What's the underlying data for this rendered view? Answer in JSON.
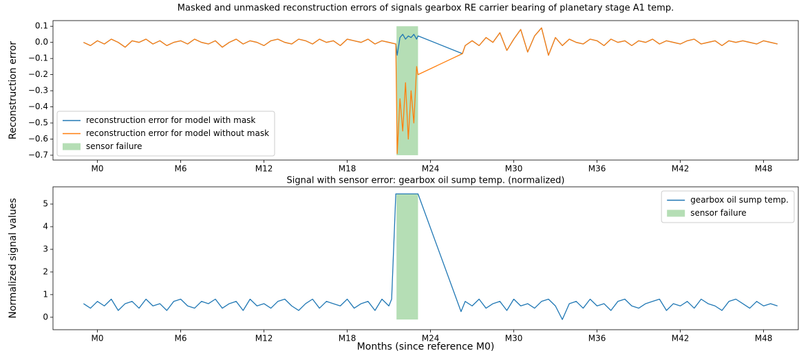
{
  "chart_data": [
    {
      "type": "line",
      "title": "Masked and unmasked reconstruction errors of signals gearbox RE carrier bearing of planetary stage A1 temp.",
      "ylabel": "Reconstruction error",
      "x": [
        -1,
        -0.5,
        0,
        0.5,
        1,
        1.5,
        2,
        2.5,
        3,
        3.5,
        4,
        4.5,
        5,
        5.5,
        6,
        6.5,
        7,
        7.5,
        8,
        8.5,
        9,
        9.5,
        10,
        10.5,
        11,
        11.5,
        12,
        12.5,
        13,
        13.5,
        14,
        14.5,
        15,
        15.5,
        16,
        16.5,
        17,
        17.5,
        18,
        18.5,
        19,
        19.5,
        20,
        20.5,
        21,
        21.5,
        21.6,
        21.8,
        22.0,
        22.2,
        22.4,
        22.6,
        22.8,
        23.0,
        23.1,
        26.3,
        26.5,
        27,
        27.5,
        28,
        28.5,
        29,
        29.5,
        30,
        30.5,
        31,
        31.5,
        32,
        32.5,
        33,
        33.5,
        34,
        34.5,
        35,
        35.5,
        36,
        36.5,
        37,
        37.5,
        38,
        38.5,
        39,
        39.5,
        40,
        40.5,
        41,
        41.5,
        42,
        42.5,
        43,
        43.5,
        44,
        44.5,
        45,
        45.5,
        46,
        46.5,
        47,
        47.5,
        48,
        48.5,
        49
      ],
      "series": [
        {
          "name": "reconstruction error for model with mask",
          "color": "#1f77b4",
          "values": [
            0.0,
            -0.02,
            0.01,
            -0.01,
            0.02,
            0.0,
            -0.03,
            0.01,
            0.0,
            0.02,
            -0.01,
            0.01,
            -0.02,
            0.0,
            0.01,
            -0.01,
            0.02,
            0.0,
            -0.01,
            0.01,
            -0.03,
            0.0,
            0.02,
            -0.01,
            0.01,
            0.0,
            -0.02,
            0.01,
            0.02,
            0.0,
            -0.01,
            0.02,
            0.01,
            -0.01,
            0.02,
            0.0,
            0.01,
            -0.02,
            0.02,
            0.01,
            0.0,
            0.02,
            -0.01,
            0.01,
            0.0,
            -0.01,
            -0.08,
            0.03,
            0.05,
            0.02,
            0.04,
            0.03,
            0.05,
            0.02,
            0.04,
            -0.07,
            -0.02,
            0.01,
            -0.02,
            0.03,
            0.0,
            0.06,
            -0.05,
            0.02,
            0.08,
            -0.06,
            0.04,
            0.09,
            -0.08,
            0.03,
            -0.02,
            0.02,
            0.0,
            -0.01,
            0.02,
            0.01,
            -0.02,
            0.02,
            0.0,
            0.01,
            -0.02,
            0.01,
            0.0,
            0.02,
            -0.01,
            0.01,
            0.0,
            -0.01,
            0.01,
            0.02,
            -0.01,
            0.0,
            0.01,
            -0.02,
            0.01,
            0.0,
            0.01,
            0.0,
            -0.01,
            0.01,
            0.0,
            -0.01
          ]
        },
        {
          "name": "reconstruction error for model without mask",
          "color": "#ff7f0e",
          "values": [
            0.0,
            -0.02,
            0.01,
            -0.01,
            0.02,
            0.0,
            -0.03,
            0.01,
            0.0,
            0.02,
            -0.01,
            0.01,
            -0.02,
            0.0,
            0.01,
            -0.01,
            0.02,
            0.0,
            -0.01,
            0.01,
            -0.03,
            0.0,
            0.02,
            -0.01,
            0.01,
            0.0,
            -0.02,
            0.01,
            0.02,
            0.0,
            -0.01,
            0.02,
            0.01,
            -0.01,
            0.02,
            0.0,
            0.01,
            -0.02,
            0.02,
            0.01,
            0.0,
            0.02,
            -0.01,
            0.01,
            0.0,
            -0.01,
            -0.69,
            -0.35,
            -0.55,
            -0.25,
            -0.6,
            -0.3,
            -0.5,
            -0.15,
            -0.2,
            -0.07,
            -0.02,
            0.01,
            -0.02,
            0.03,
            0.0,
            0.06,
            -0.05,
            0.02,
            0.08,
            -0.06,
            0.04,
            0.09,
            -0.08,
            0.03,
            -0.02,
            0.02,
            0.0,
            -0.01,
            0.02,
            0.01,
            -0.02,
            0.02,
            0.0,
            0.01,
            -0.02,
            0.01,
            0.0,
            0.02,
            -0.01,
            0.01,
            0.0,
            -0.01,
            0.01,
            0.02,
            -0.01,
            0.0,
            0.01,
            -0.02,
            0.01,
            0.0,
            0.01,
            0.0,
            -0.01,
            0.01,
            0.0,
            -0.01
          ]
        }
      ],
      "regions": [
        {
          "name": "sensor failure",
          "color": "#2ca02c",
          "alpha": 0.35,
          "x0": 21.55,
          "x1": 23.1,
          "y0": -0.7,
          "y1": 0.1
        }
      ],
      "xlim": [
        -3.2,
        50.5
      ],
      "xticks": [
        {
          "value": 0,
          "label": "M0"
        },
        {
          "value": 6,
          "label": "M6"
        },
        {
          "value": 12,
          "label": "M12"
        },
        {
          "value": 18,
          "label": "M18"
        },
        {
          "value": 24,
          "label": "M24"
        },
        {
          "value": 30,
          "label": "M30"
        },
        {
          "value": 36,
          "label": "M36"
        },
        {
          "value": 42,
          "label": "M42"
        },
        {
          "value": 48,
          "label": "M48"
        }
      ],
      "ylim": [
        -0.73,
        0.135
      ],
      "yticks": [
        {
          "value": 0.1,
          "label": "0.1"
        },
        {
          "value": 0,
          "label": "0.0"
        },
        {
          "value": -0.1,
          "label": "−0.1"
        },
        {
          "value": -0.2,
          "label": "−0.2"
        },
        {
          "value": -0.3,
          "label": "−0.3"
        },
        {
          "value": -0.4,
          "label": "−0.4"
        },
        {
          "value": -0.5,
          "label": "−0.5"
        },
        {
          "value": -0.6,
          "label": "−0.6"
        },
        {
          "value": -0.7,
          "label": "−0.7"
        }
      ],
      "legend": "lower left"
    },
    {
      "type": "line",
      "title": "Signal with sensor error: gearbox oil sump temp. (normalized)",
      "ylabel": "Normalized signal values",
      "xlabel": "Months (since reference M0)",
      "x": [
        -1,
        -0.5,
        0,
        0.5,
        1,
        1.5,
        2,
        2.5,
        3,
        3.5,
        4,
        4.5,
        5,
        5.5,
        6,
        6.5,
        7,
        7.5,
        8,
        8.5,
        9,
        9.5,
        10,
        10.5,
        11,
        11.5,
        12,
        12.5,
        13,
        13.5,
        14,
        14.5,
        15,
        15.5,
        16,
        16.5,
        17,
        17.5,
        18,
        18.5,
        19,
        19.5,
        20,
        20.5,
        21,
        21.2,
        21.5,
        23.1,
        26.2,
        26.5,
        27,
        27.5,
        28,
        28.5,
        29,
        29.5,
        30,
        30.5,
        31,
        31.5,
        32,
        32.5,
        33,
        33.5,
        34,
        34.5,
        35,
        35.5,
        36,
        36.5,
        37,
        37.5,
        38,
        38.5,
        39,
        39.5,
        40,
        40.5,
        41,
        41.5,
        42,
        42.5,
        43,
        43.5,
        44,
        44.5,
        45,
        45.5,
        46,
        46.5,
        47,
        47.5,
        48,
        48.5,
        49
      ],
      "series": [
        {
          "name": "gearbox oil sump temp.",
          "color": "#1f77b4",
          "values": [
            0.6,
            0.4,
            0.7,
            0.5,
            0.8,
            0.3,
            0.6,
            0.7,
            0.4,
            0.8,
            0.5,
            0.6,
            0.3,
            0.7,
            0.8,
            0.5,
            0.4,
            0.7,
            0.6,
            0.8,
            0.4,
            0.6,
            0.7,
            0.3,
            0.8,
            0.5,
            0.6,
            0.4,
            0.7,
            0.8,
            0.5,
            0.3,
            0.6,
            0.8,
            0.4,
            0.7,
            0.6,
            0.5,
            0.8,
            0.4,
            0.6,
            0.7,
            0.3,
            0.8,
            0.5,
            0.8,
            5.45,
            5.45,
            0.25,
            0.7,
            0.5,
            0.8,
            0.4,
            0.6,
            0.7,
            0.3,
            0.8,
            0.5,
            0.6,
            0.4,
            0.7,
            0.8,
            0.5,
            -0.1,
            0.6,
            0.7,
            0.4,
            0.8,
            0.5,
            0.6,
            0.3,
            0.7,
            0.8,
            0.5,
            0.4,
            0.6,
            0.7,
            0.8,
            0.3,
            0.6,
            0.5,
            0.7,
            0.4,
            0.8,
            0.6,
            0.5,
            0.3,
            0.7,
            0.8,
            0.6,
            0.4,
            0.7,
            0.5,
            0.6,
            0.5
          ]
        }
      ],
      "regions": [
        {
          "name": "sensor failure",
          "color": "#2ca02c",
          "alpha": 0.35,
          "x0": 21.55,
          "x1": 23.1,
          "y0": -0.1,
          "y1": 5.45
        }
      ],
      "xlim": [
        -3.2,
        50.5
      ],
      "xticks": [
        {
          "value": 0,
          "label": "M0"
        },
        {
          "value": 6,
          "label": "M6"
        },
        {
          "value": 12,
          "label": "M12"
        },
        {
          "value": 18,
          "label": "M18"
        },
        {
          "value": 24,
          "label": "M24"
        },
        {
          "value": 30,
          "label": "M30"
        },
        {
          "value": 36,
          "label": "M36"
        },
        {
          "value": 42,
          "label": "M42"
        },
        {
          "value": 48,
          "label": "M48"
        }
      ],
      "ylim": [
        -0.55,
        5.76
      ],
      "yticks": [
        0,
        1,
        2,
        3,
        4,
        5
      ],
      "legend": "upper right"
    }
  ]
}
